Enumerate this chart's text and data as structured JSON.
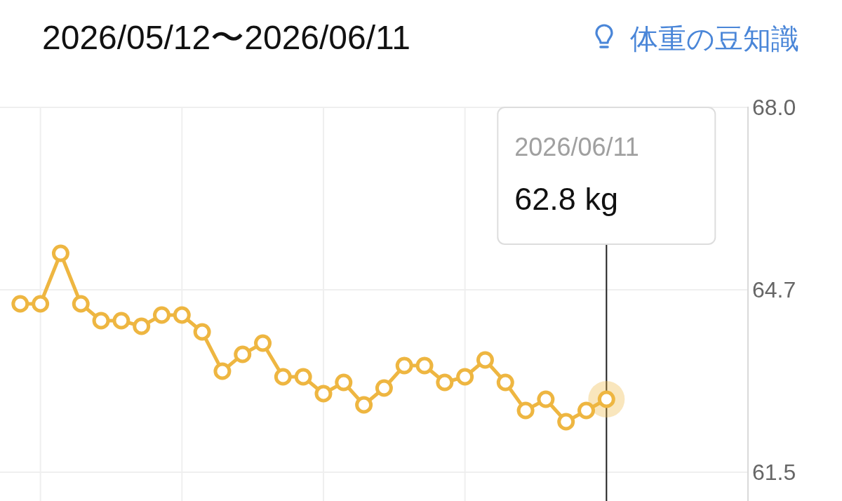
{
  "chart_data": {
    "type": "line",
    "title": "2026/05/12〜2026/06/11",
    "annotations": [
      "体重の豆知識",
      "2026/06/11",
      "62.8 kg"
    ],
    "categories": [
      null,
      null,
      null,
      null,
      null,
      null,
      null,
      null,
      null,
      null,
      null,
      null,
      null,
      null,
      null,
      null,
      null,
      null,
      null,
      null,
      null,
      null,
      null,
      null,
      null,
      null,
      null,
      null,
      null,
      null
    ],
    "series": [
      {
        "color": "#eeb641",
        "values": [
          64.5,
          64.5,
          65.4,
          64.5,
          64.2,
          64.2,
          64.1,
          64.3,
          64.3,
          64.0,
          63.3,
          63.6,
          63.8,
          63.2,
          63.2,
          62.9,
          63.1,
          62.7,
          63.0,
          63.4,
          63.4,
          63.1,
          63.2,
          63.5,
          63.1,
          62.6,
          62.8,
          62.4,
          62.6,
          62.8
        ]
      }
    ],
    "ylim": [
      61.0,
      68.0
    ],
    "yticks": [
      {
        "value": 68.0,
        "label": "68.0"
      },
      {
        "value": 64.75,
        "label": "64.7"
      },
      61.5
    ],
    "grid": true,
    "tick_labels": "y",
    "marker": "circle",
    "line_style": "solid"
  }
}
